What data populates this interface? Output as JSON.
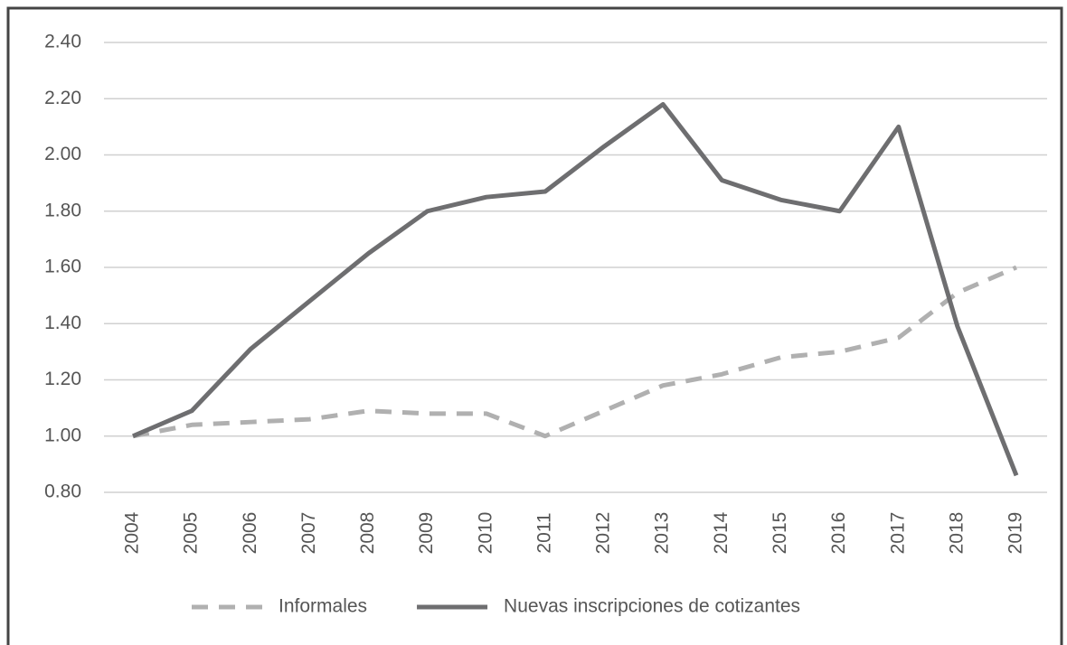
{
  "chart_data": {
    "type": "line",
    "categories": [
      "2004",
      "2005",
      "2006",
      "2007",
      "2008",
      "2009",
      "2010",
      "2011",
      "2012",
      "2013",
      "2014",
      "2015",
      "2016",
      "2017",
      "2018",
      "2019"
    ],
    "series": [
      {
        "name": "Informales",
        "color": "#b0b0b0",
        "style": "dashed",
        "values": [
          1.0,
          1.04,
          1.05,
          1.06,
          1.09,
          1.08,
          1.08,
          1.0,
          1.09,
          1.18,
          1.22,
          1.28,
          1.3,
          1.35,
          1.51,
          1.6
        ]
      },
      {
        "name": "Nuevas inscripciones de cotizantes",
        "color": "#6e6e70",
        "style": "solid",
        "values": [
          1.0,
          1.09,
          1.31,
          1.48,
          1.65,
          1.8,
          1.85,
          1.87,
          2.03,
          2.18,
          1.91,
          1.84,
          1.8,
          2.1,
          1.39,
          0.86
        ]
      }
    ],
    "ylim": [
      0.8,
      2.4
    ],
    "yticks": [
      {
        "value": 0.8,
        "label": "0.80"
      },
      {
        "value": 1.0,
        "label": "1.00"
      },
      {
        "value": 1.2,
        "label": "1.20"
      },
      {
        "value": 1.4,
        "label": "1.40"
      },
      {
        "value": 1.6,
        "label": "1.60"
      },
      {
        "value": 1.8,
        "label": "1.80"
      },
      {
        "value": 2.0,
        "label": "2.00"
      },
      {
        "value": 2.2,
        "label": "2.20"
      },
      {
        "value": 2.4,
        "label": "2.40"
      }
    ],
    "grid": true,
    "legend": "bottom"
  }
}
